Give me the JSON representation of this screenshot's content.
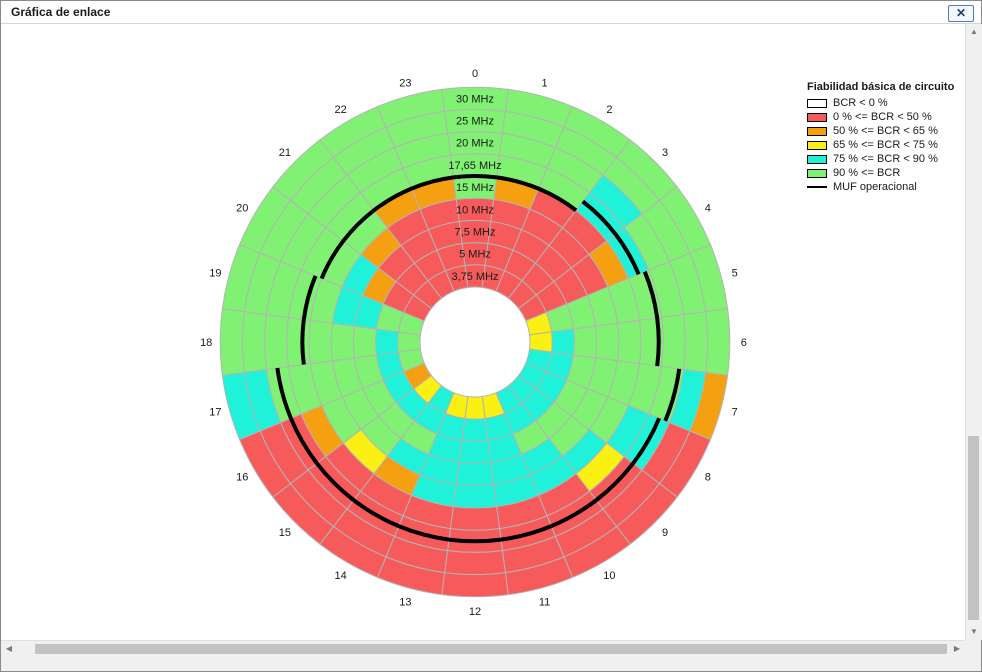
{
  "window": {
    "title": "Gráfica de enlace",
    "close_label": "✕"
  },
  "chart_data": {
    "type": "polar-heatmap",
    "title": "",
    "hour_labels": [
      "0",
      "1",
      "2",
      "3",
      "4",
      "5",
      "6",
      "7",
      "8",
      "9",
      "10",
      "11",
      "12",
      "13",
      "14",
      "15",
      "16",
      "17",
      "18",
      "19",
      "20",
      "21",
      "22",
      "23"
    ],
    "frequency_labels": [
      "3,75 MHz",
      "5 MHz",
      "7,5 MHz",
      "10 MHz",
      "15 MHz",
      "17,65 MHz",
      "20 MHz",
      "25 MHz",
      "30 MHz"
    ],
    "color_scale": [
      "#ffffff",
      "#f75a5a",
      "#f5a011",
      "#faf011",
      "#1ff2d8",
      "#80f173"
    ],
    "grid": {
      "rings": 9,
      "sectors": 24,
      "start_angle_deg": -7.5,
      "line_color": "#b4b4b4"
    },
    "legend": {
      "title": "Fiabilidad básica de circuito",
      "position": "top-right",
      "items": [
        {
          "label": "BCR < 0 %",
          "color": "#ffffff"
        },
        {
          "label": "0 % <= BCR < 50 %",
          "color": "#f75a5a"
        },
        {
          "label": "50 % <= BCR < 65 %",
          "color": "#f5a011"
        },
        {
          "label": "65 % <= BCR < 75 %",
          "color": "#faf011"
        },
        {
          "label": "75 % <= BCR < 90 %",
          "color": "#1ff2d8"
        },
        {
          "label": "90 % <= BCR",
          "color": "#80f173"
        }
      ],
      "muf_label": "MUF operacional"
    },
    "bcr_class": [
      [
        1,
        1,
        1,
        1,
        5,
        5,
        5,
        5,
        5
      ],
      [
        1,
        1,
        1,
        1,
        2,
        5,
        5,
        5,
        5
      ],
      [
        1,
        1,
        1,
        1,
        1,
        5,
        5,
        5,
        5
      ],
      [
        1,
        1,
        1,
        1,
        1,
        4,
        4,
        5,
        5
      ],
      [
        1,
        1,
        1,
        1,
        2,
        4,
        5,
        5,
        5
      ],
      [
        3,
        5,
        5,
        5,
        5,
        5,
        5,
        5,
        5
      ],
      [
        3,
        4,
        5,
        5,
        5,
        5,
        5,
        5,
        5
      ],
      [
        4,
        4,
        5,
        5,
        5,
        5,
        5,
        4,
        2
      ],
      [
        4,
        4,
        5,
        5,
        5,
        4,
        4,
        1,
        1
      ],
      [
        4,
        4,
        5,
        5,
        4,
        3,
        1,
        1,
        1
      ],
      [
        4,
        4,
        5,
        4,
        4,
        1,
        1,
        1,
        1
      ],
      [
        3,
        4,
        4,
        4,
        4,
        1,
        1,
        1,
        1
      ],
      [
        3,
        4,
        4,
        4,
        4,
        1,
        1,
        1,
        1
      ],
      [
        3,
        4,
        4,
        4,
        4,
        1,
        1,
        1,
        1
      ],
      [
        4,
        4,
        5,
        4,
        2,
        1,
        1,
        1,
        1
      ],
      [
        3,
        4,
        5,
        5,
        3,
        1,
        1,
        1,
        1
      ],
      [
        2,
        4,
        5,
        5,
        5,
        2,
        1,
        1,
        1
      ],
      [
        5,
        4,
        5,
        5,
        5,
        5,
        5,
        4,
        4
      ],
      [
        5,
        4,
        5,
        5,
        5,
        5,
        5,
        5,
        5
      ],
      [
        5,
        5,
        4,
        4,
        5,
        5,
        5,
        5,
        5
      ],
      [
        1,
        1,
        2,
        4,
        5,
        5,
        5,
        5,
        5
      ],
      [
        1,
        1,
        1,
        2,
        5,
        5,
        5,
        5,
        5
      ],
      [
        1,
        1,
        1,
        1,
        2,
        5,
        5,
        5,
        5
      ],
      [
        1,
        1,
        1,
        1,
        2,
        5,
        5,
        5,
        5
      ]
    ],
    "muf_operacional": [
      5.0,
      5.0,
      5.0,
      5.5,
      5.5,
      5.8,
      5.8,
      6.8,
      6.5,
      6.5,
      6.5,
      6.5,
      6.5,
      6.5,
      6.5,
      6.5,
      6.5,
      6.5,
      5.3,
      5.3,
      5.0,
      5.0,
      5.0,
      5.0
    ]
  }
}
